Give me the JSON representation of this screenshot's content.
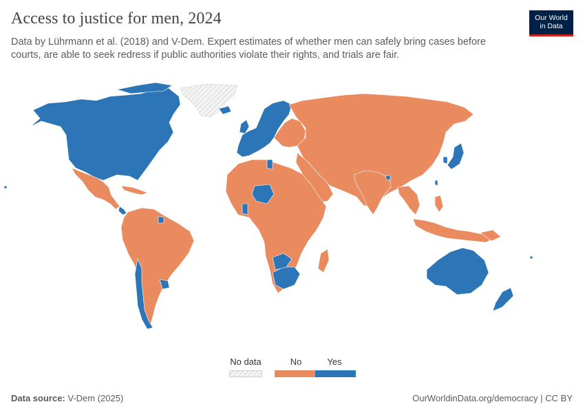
{
  "title": "Access to justice for men, 2024",
  "subtitle": "Data by Lührmann et al. (2018) and V-Dem. Expert estimates of whether men can safely bring cases before courts, are able to seek redress if public authorities violate their rights, and trials are fair.",
  "logo": {
    "line1": "Our World",
    "line2": "in Data"
  },
  "legend": {
    "no_data_label": "No data",
    "no_label": "No",
    "yes_label": "Yes"
  },
  "colors": {
    "no": "#ea8a5f",
    "yes": "#2c75b6",
    "no_data_fill": "#f0f0f0",
    "border": "#ffffff"
  },
  "regions": {
    "yes": [
      "North America",
      "Western & Northern Europe",
      "Japan",
      "South Korea",
      "Australia",
      "New Zealand",
      "South Africa",
      "Chile",
      "Uruguay",
      "Costa Rica",
      "Namibia",
      "Ghana",
      "Niger",
      "Tunisia",
      "Bhutan",
      "Taiwan",
      "Botswana",
      "Suriname"
    ],
    "no": [
      "Russia",
      "China",
      "Mongolia",
      "Central Asia",
      "Middle East",
      "Most of Africa",
      "Mexico",
      "Most of South America",
      "South & Southeast Asia",
      "Indonesia",
      "Papua New Guinea",
      "Eastern Europe"
    ],
    "no_data": [
      "Greenland"
    ]
  },
  "footer": {
    "source_label": "Data source:",
    "source_value": " V-Dem (2025)",
    "url": "OurWorldinData.org/democracy | CC BY"
  }
}
